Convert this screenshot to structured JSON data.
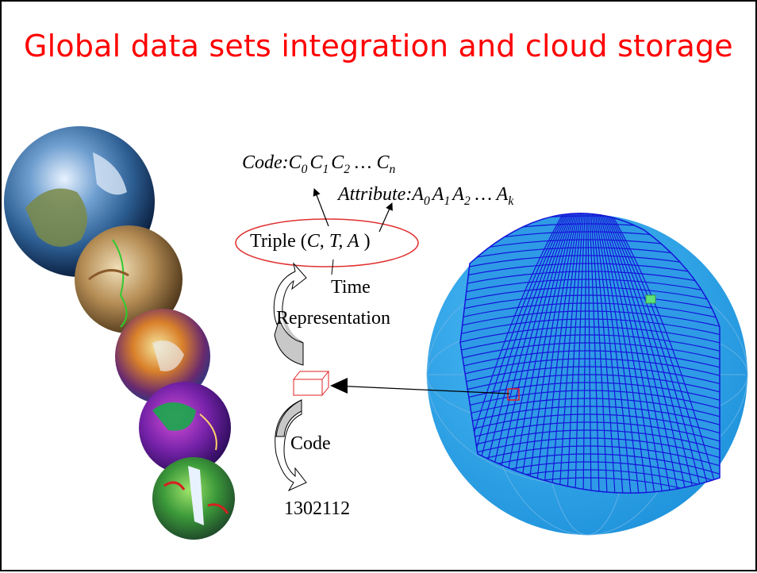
{
  "title": "Global data sets integration and cloud storage",
  "diagram": {
    "code_label": "Code:",
    "code_terms": [
      "C",
      "0",
      "C",
      "1",
      "C",
      "2",
      " … ",
      "C",
      "n"
    ],
    "attribute_label": "Attribute:",
    "attribute_terms": [
      "A",
      "0",
      "A",
      "1",
      "A",
      "2",
      " … ",
      "A",
      "k"
    ],
    "triple_prefix": "Triple (",
    "triple_c": "C, ",
    "triple_t": "T, ",
    "triple_a": "A",
    "triple_suffix": " )",
    "time_line1": "Time",
    "time_line2": "Representation",
    "code_step": "Code",
    "code_value": "1302112"
  },
  "colors": {
    "title": "#ff0000",
    "ellipse": "#e03030",
    "sphere": "#2fa8ee",
    "grid": "#1515d8",
    "cell": "#e02020"
  }
}
